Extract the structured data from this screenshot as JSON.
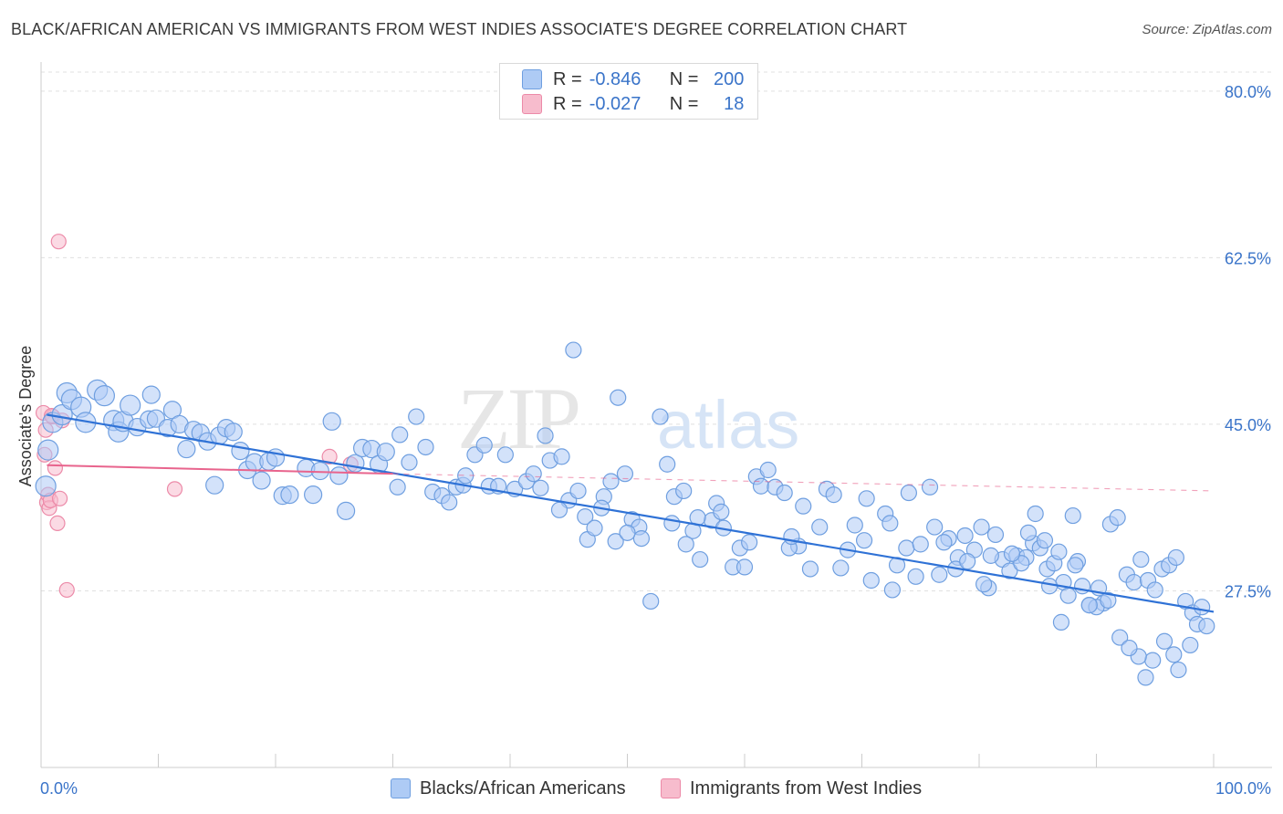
{
  "title": "BLACK/AFRICAN AMERICAN VS IMMIGRANTS FROM WEST INDIES ASSOCIATE'S DEGREE CORRELATION CHART",
  "source": "Source: ZipAtlas.com",
  "watermark": {
    "zip": "ZIP",
    "atlas": "atlas"
  },
  "legend": {
    "rows": [
      {
        "r_label": "R =",
        "r_value": "-0.846",
        "n_label": "N =",
        "n_value": "200"
      },
      {
        "r_label": "R =",
        "r_value": "-0.027",
        "n_label": "N =",
        "n_value": "18"
      }
    ]
  },
  "colors": {
    "blue_fill": "#aecbf5",
    "blue_stroke": "#6f9fe0",
    "blue_line": "#2f72d6",
    "pink_fill": "#f7bccd",
    "pink_stroke": "#ec8aa8",
    "pink_line": "#e8648d",
    "axis_label": "#3a74c9",
    "grid": "#e0e0e0"
  },
  "chart_data": {
    "type": "scatter",
    "title": "BLACK/AFRICAN AMERICAN VS IMMIGRANTS FROM WEST INDIES ASSOCIATE'S DEGREE CORRELATION CHART",
    "xlabel": "",
    "ylabel": "Associate's Degree",
    "xlim": [
      0,
      100
    ],
    "ylim": [
      10,
      82
    ],
    "x_tick_labels": [
      "0.0%",
      "100.0%"
    ],
    "y_ticks": [
      27.5,
      45.0,
      62.5,
      80.0
    ],
    "y_tick_labels": [
      "27.5%",
      "45.0%",
      "62.5%",
      "80.0%"
    ],
    "grid": true,
    "legend_position": "top-center",
    "series": [
      {
        "name": "Blacks/African Americans",
        "r": -0.846,
        "n": 200,
        "trend": {
          "x": [
            0.5,
            100
          ],
          "y": [
            46.0,
            25.3
          ],
          "style": "solid"
        },
        "points": [
          [
            0.4,
            38.5
          ],
          [
            0.6,
            42.3
          ],
          [
            1.0,
            45.2
          ],
          [
            1.8,
            46.0
          ],
          [
            2.2,
            48.3
          ],
          [
            2.6,
            47.6
          ],
          [
            3.4,
            46.8
          ],
          [
            3.8,
            45.2
          ],
          [
            4.8,
            48.6
          ],
          [
            5.4,
            48.0
          ],
          [
            6.2,
            45.4
          ],
          [
            6.6,
            44.2
          ],
          [
            7.0,
            45.3
          ],
          [
            7.6,
            47.0
          ],
          [
            8.2,
            44.7
          ],
          [
            9.2,
            45.5
          ],
          [
            9.4,
            48.1
          ],
          [
            9.8,
            45.6
          ],
          [
            10.8,
            44.6
          ],
          [
            11.2,
            46.5
          ],
          [
            11.8,
            45.0
          ],
          [
            12.4,
            42.4
          ],
          [
            13.0,
            44.4
          ],
          [
            13.6,
            44.1
          ],
          [
            14.2,
            43.2
          ],
          [
            14.8,
            38.6
          ],
          [
            15.2,
            43.8
          ],
          [
            15.8,
            44.6
          ],
          [
            16.4,
            44.2
          ],
          [
            17.0,
            42.2
          ],
          [
            17.6,
            40.2
          ],
          [
            18.2,
            41.0
          ],
          [
            18.8,
            39.1
          ],
          [
            19.4,
            41.1
          ],
          [
            20.0,
            41.5
          ],
          [
            20.6,
            37.5
          ],
          [
            21.2,
            37.6
          ],
          [
            22.6,
            40.4
          ],
          [
            23.2,
            37.6
          ],
          [
            23.8,
            40.1
          ],
          [
            24.8,
            45.3
          ],
          [
            25.4,
            39.6
          ],
          [
            26.0,
            35.9
          ],
          [
            26.8,
            40.9
          ],
          [
            27.4,
            42.5
          ],
          [
            28.2,
            42.4
          ],
          [
            28.8,
            40.8
          ],
          [
            29.4,
            42.1
          ],
          [
            30.4,
            38.4
          ],
          [
            30.6,
            43.9
          ],
          [
            31.4,
            41.0
          ],
          [
            32.0,
            45.8
          ],
          [
            32.8,
            42.6
          ],
          [
            33.4,
            37.9
          ],
          [
            34.2,
            37.5
          ],
          [
            34.8,
            36.8
          ],
          [
            35.4,
            38.4
          ],
          [
            36.0,
            38.6
          ],
          [
            37.0,
            41.8
          ],
          [
            37.8,
            42.8
          ],
          [
            38.2,
            38.5
          ],
          [
            39.0,
            38.5
          ],
          [
            39.6,
            41.8
          ],
          [
            40.4,
            38.2
          ],
          [
            41.4,
            39.0
          ],
          [
            42.0,
            39.8
          ],
          [
            42.6,
            38.3
          ],
          [
            43.0,
            43.8
          ],
          [
            43.4,
            41.2
          ],
          [
            44.4,
            41.6
          ],
          [
            45.0,
            37.0
          ],
          [
            45.8,
            38.0
          ],
          [
            46.4,
            35.3
          ],
          [
            46.6,
            32.9
          ],
          [
            47.2,
            34.1
          ],
          [
            48.0,
            37.4
          ],
          [
            48.6,
            39.0
          ],
          [
            49.0,
            32.7
          ],
          [
            49.8,
            39.8
          ],
          [
            50.4,
            35.0
          ],
          [
            51.0,
            34.2
          ],
          [
            51.2,
            33.0
          ],
          [
            52.8,
            45.8
          ],
          [
            53.4,
            40.8
          ],
          [
            54.0,
            37.4
          ],
          [
            54.8,
            38.0
          ],
          [
            55.6,
            33.8
          ],
          [
            56.2,
            30.8
          ],
          [
            57.2,
            34.9
          ],
          [
            57.6,
            36.7
          ],
          [
            58.2,
            34.1
          ],
          [
            59.0,
            30.0
          ],
          [
            59.6,
            32.0
          ],
          [
            60.4,
            32.6
          ],
          [
            61.0,
            39.5
          ],
          [
            61.4,
            38.5
          ],
          [
            62.0,
            40.2
          ],
          [
            62.6,
            38.4
          ],
          [
            63.4,
            37.8
          ],
          [
            64.6,
            32.2
          ],
          [
            65.0,
            36.4
          ],
          [
            65.6,
            29.8
          ],
          [
            66.4,
            34.2
          ],
          [
            67.0,
            38.2
          ],
          [
            67.6,
            37.6
          ],
          [
            68.2,
            29.9
          ],
          [
            68.8,
            31.8
          ],
          [
            69.4,
            34.4
          ],
          [
            70.2,
            32.8
          ],
          [
            70.8,
            28.6
          ],
          [
            72.0,
            35.6
          ],
          [
            72.6,
            27.6
          ],
          [
            73.0,
            30.2
          ],
          [
            73.8,
            32.0
          ],
          [
            74.6,
            29.0
          ],
          [
            75.8,
            38.4
          ],
          [
            76.6,
            29.2
          ],
          [
            77.4,
            33.0
          ],
          [
            78.2,
            31.0
          ],
          [
            78.8,
            33.3
          ],
          [
            79.6,
            31.8
          ],
          [
            80.2,
            34.2
          ],
          [
            80.8,
            27.8
          ],
          [
            81.4,
            33.4
          ],
          [
            82.0,
            30.8
          ],
          [
            82.6,
            29.6
          ],
          [
            83.2,
            31.2
          ],
          [
            84.0,
            31.0
          ],
          [
            84.6,
            32.5
          ],
          [
            85.2,
            32.0
          ],
          [
            85.8,
            29.8
          ],
          [
            86.4,
            30.4
          ],
          [
            87.2,
            28.4
          ],
          [
            87.6,
            27.0
          ],
          [
            88.4,
            30.6
          ],
          [
            88.8,
            28.0
          ],
          [
            89.4,
            26.0
          ],
          [
            90.2,
            27.8
          ],
          [
            90.6,
            26.2
          ],
          [
            91.2,
            34.5
          ],
          [
            91.8,
            35.2
          ],
          [
            92.6,
            29.2
          ],
          [
            93.2,
            28.4
          ],
          [
            93.8,
            30.8
          ],
          [
            94.4,
            28.6
          ],
          [
            95.0,
            27.6
          ],
          [
            95.6,
            29.8
          ],
          [
            96.2,
            30.2
          ],
          [
            96.8,
            31.0
          ],
          [
            97.6,
            26.4
          ],
          [
            98.2,
            25.2
          ],
          [
            98.6,
            24.0
          ],
          [
            99.0,
            25.8
          ],
          [
            99.4,
            23.8
          ],
          [
            90.0,
            25.8
          ],
          [
            91.0,
            26.5
          ],
          [
            92.0,
            22.6
          ],
          [
            86.0,
            28.0
          ],
          [
            74.0,
            37.8
          ],
          [
            88.0,
            35.4
          ],
          [
            81.0,
            31.2
          ],
          [
            84.8,
            35.6
          ],
          [
            83.6,
            30.4
          ],
          [
            77.0,
            32.6
          ],
          [
            95.8,
            22.2
          ],
          [
            96.6,
            20.8
          ],
          [
            97.0,
            19.2
          ],
          [
            98.0,
            21.8
          ],
          [
            94.8,
            20.2
          ],
          [
            94.2,
            18.4
          ],
          [
            93.6,
            20.6
          ],
          [
            92.8,
            21.5
          ],
          [
            89.4,
            26.0
          ],
          [
            87.0,
            24.2
          ],
          [
            52.0,
            26.4
          ],
          [
            55.0,
            32.4
          ],
          [
            60.0,
            30.0
          ],
          [
            63.8,
            32.0
          ],
          [
            70.4,
            37.2
          ],
          [
            72.4,
            34.6
          ],
          [
            75.0,
            32.4
          ],
          [
            76.2,
            34.2
          ],
          [
            78.0,
            29.8
          ],
          [
            79.0,
            30.6
          ],
          [
            80.4,
            28.2
          ],
          [
            82.8,
            31.4
          ],
          [
            84.2,
            33.6
          ],
          [
            85.6,
            32.8
          ],
          [
            86.8,
            31.6
          ],
          [
            88.2,
            30.2
          ],
          [
            64.0,
            33.2
          ],
          [
            58.0,
            35.8
          ],
          [
            56.0,
            35.2
          ],
          [
            53.8,
            34.6
          ],
          [
            50.0,
            33.6
          ],
          [
            47.8,
            36.2
          ],
          [
            45.4,
            52.8
          ],
          [
            49.2,
            47.8
          ],
          [
            36.2,
            39.6
          ],
          [
            44.2,
            36.0
          ]
        ]
      },
      {
        "name": "Immigrants from West Indies",
        "r": -0.027,
        "n": 18,
        "trend": {
          "x": [
            0.5,
            30
          ],
          "y": [
            40.7,
            39.8
          ],
          "style": "solid",
          "extended_x": [
            30,
            100
          ],
          "extended_y": [
            39.8,
            38.0
          ],
          "extended_style": "dashed"
        },
        "points": [
          [
            0.2,
            46.2
          ],
          [
            0.3,
            41.8
          ],
          [
            0.4,
            44.4
          ],
          [
            0.5,
            36.8
          ],
          [
            0.6,
            37.6
          ],
          [
            0.7,
            36.2
          ],
          [
            0.8,
            37.0
          ],
          [
            1.0,
            45.8
          ],
          [
            1.2,
            40.4
          ],
          [
            1.4,
            34.6
          ],
          [
            1.6,
            37.2
          ],
          [
            1.8,
            45.4
          ],
          [
            2.2,
            27.6
          ],
          [
            1.5,
            64.2
          ],
          [
            11.4,
            38.2
          ],
          [
            24.6,
            41.6
          ],
          [
            26.4,
            40.8
          ],
          [
            0.9,
            45.9
          ]
        ]
      }
    ]
  },
  "bottom_legend": {
    "items": [
      {
        "label": "Blacks/African Americans"
      },
      {
        "label": "Immigrants from West Indies"
      }
    ]
  }
}
